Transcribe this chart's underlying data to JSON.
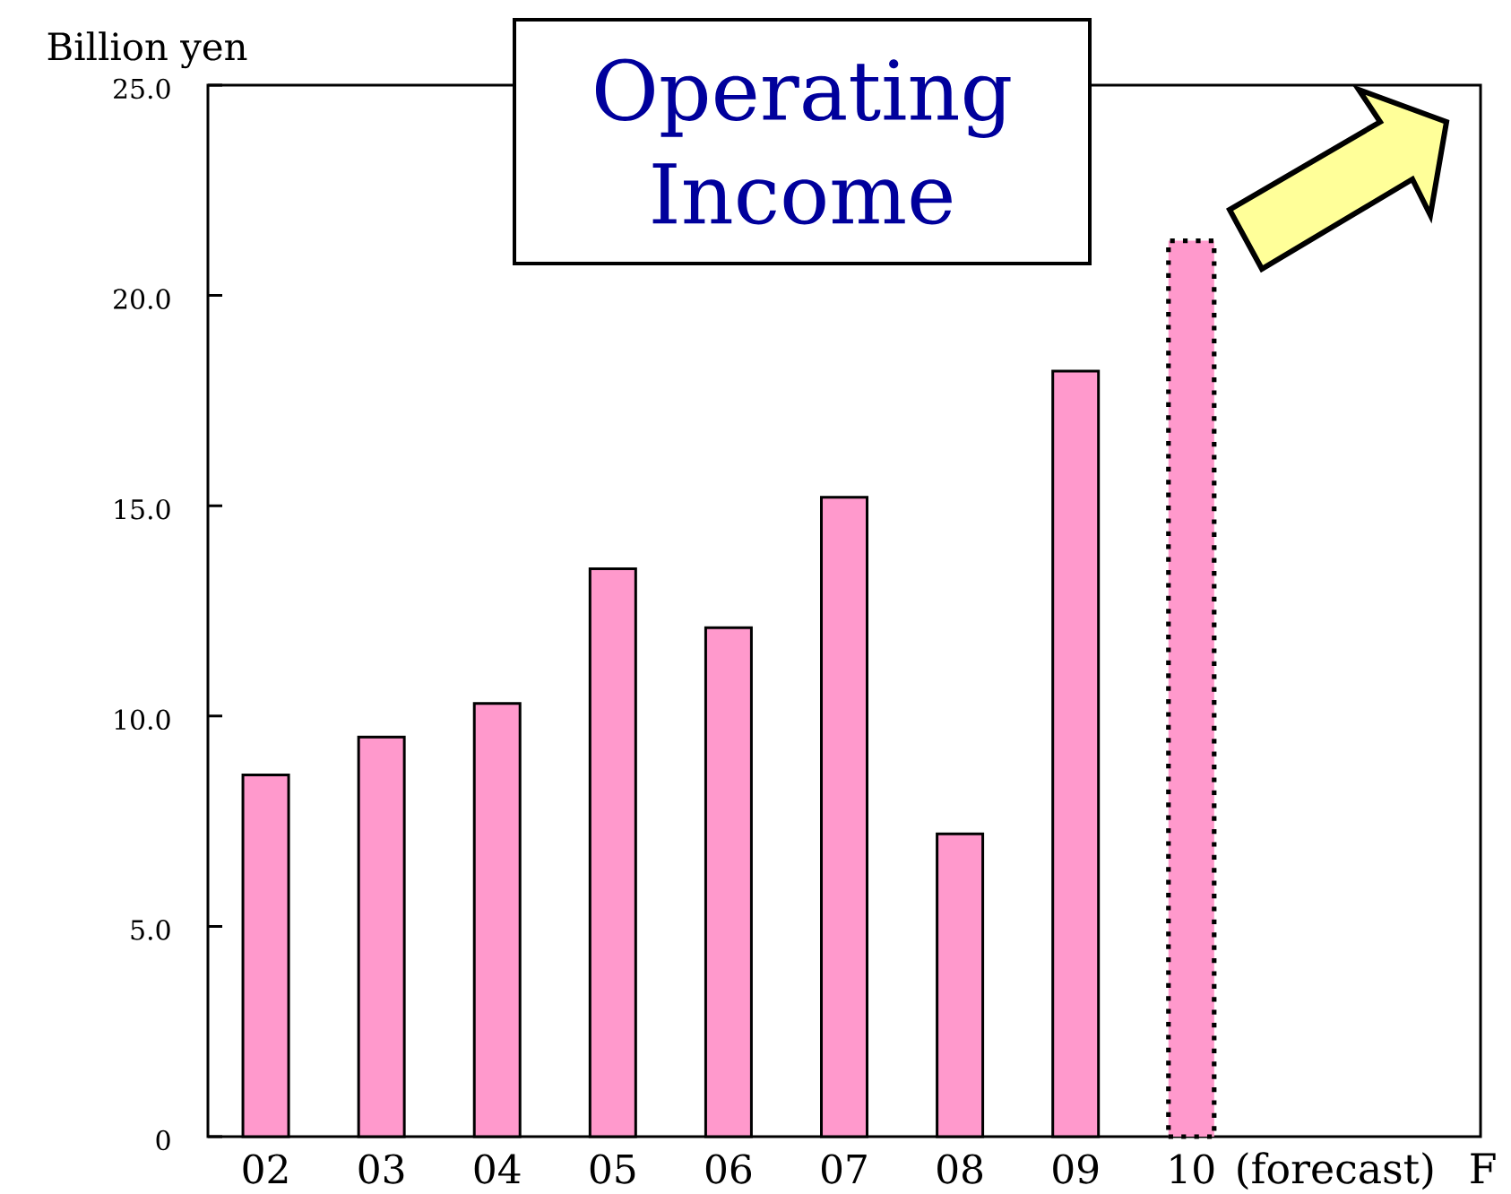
{
  "chart_data": {
    "type": "bar",
    "title": "Operating Income",
    "ylabel": "Billion yen",
    "categories": [
      "02",
      "03",
      "04",
      "05",
      "06",
      "07",
      "08",
      "09",
      "10"
    ],
    "series": [
      {
        "color": "#ff99cc",
        "line_style": "solid",
        "values": [
          8.6,
          9.5,
          10.3,
          13.5,
          12.1,
          15.2,
          7.2,
          18.2,
          null
        ]
      },
      {
        "color": "#ff99cc",
        "line_style": "dotted",
        "values": [
          null,
          null,
          null,
          null,
          null,
          null,
          null,
          null,
          21.3
        ]
      }
    ],
    "ylim": [
      0,
      25
    ],
    "yticks": [
      0,
      {
        "value": 5,
        "label": "5.0"
      },
      {
        "value": 10,
        "label": "10.0"
      },
      {
        "value": 15,
        "label": "15.0"
      },
      {
        "value": 20,
        "label": "20.0"
      },
      {
        "value": 25,
        "label": "25.0"
      }
    ],
    "annotations": [
      "(forecast)",
      "F"
    ]
  }
}
